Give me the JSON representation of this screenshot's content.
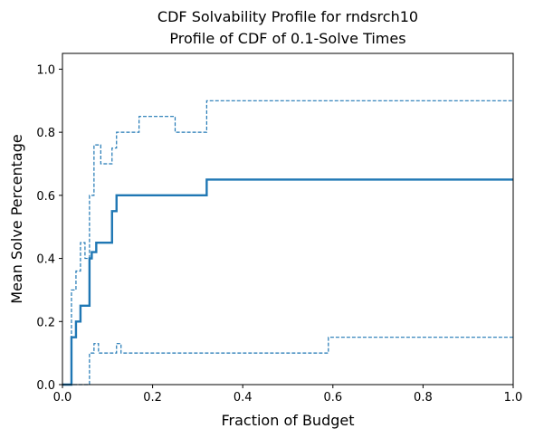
{
  "chart_data": {
    "type": "line",
    "title": "CDF Solvability Profile for rndsrch10",
    "subtitle": "Profile of CDF of 0.1-Solve Times",
    "xlabel": "Fraction of Budget",
    "ylabel": "Mean Solve Percentage",
    "xlim": [
      0,
      1
    ],
    "ylim": [
      0,
      1.05
    ],
    "xticks": [
      "0.0",
      "0.2",
      "0.4",
      "0.6",
      "0.8",
      "1.0"
    ],
    "yticks": [
      "0.0",
      "0.2",
      "0.4",
      "0.6",
      "0.8",
      "1.0"
    ],
    "grid": false,
    "color": "#1f77b4",
    "series": [
      {
        "style": "solid",
        "x": [
          0,
          0.02,
          0.02,
          0.03,
          0.03,
          0.04,
          0.04,
          0.06,
          0.06,
          0.065,
          0.065,
          0.075,
          0.075,
          0.11,
          0.11,
          0.12,
          0.12,
          0.32,
          0.32,
          1.0
        ],
        "y": [
          0,
          0,
          0.15,
          0.15,
          0.2,
          0.2,
          0.25,
          0.25,
          0.4,
          0.4,
          0.42,
          0.42,
          0.45,
          0.45,
          0.55,
          0.55,
          0.6,
          0.6,
          0.65,
          0.65
        ]
      },
      {
        "style": "dashed",
        "x": [
          0,
          0.02,
          0.02,
          0.03,
          0.03,
          0.04,
          0.04,
          0.05,
          0.05,
          0.06,
          0.06,
          0.07,
          0.07,
          0.085,
          0.085,
          0.11,
          0.11,
          0.12,
          0.12,
          0.17,
          0.17,
          0.25,
          0.25,
          0.32,
          0.32,
          1.0
        ],
        "y": [
          0,
          0,
          0.3,
          0.3,
          0.36,
          0.36,
          0.45,
          0.45,
          0.4,
          0.4,
          0.6,
          0.6,
          0.76,
          0.76,
          0.7,
          0.7,
          0.75,
          0.75,
          0.8,
          0.8,
          0.85,
          0.85,
          0.8,
          0.8,
          0.9,
          0.9
        ]
      },
      {
        "style": "dashed",
        "x": [
          0,
          0.06,
          0.06,
          0.07,
          0.07,
          0.08,
          0.08,
          0.12,
          0.12,
          0.13,
          0.13,
          0.59,
          0.59,
          1.0
        ],
        "y": [
          0,
          0,
          0.1,
          0.1,
          0.13,
          0.13,
          0.1,
          0.1,
          0.13,
          0.13,
          0.1,
          0.1,
          0.15,
          0.15
        ]
      }
    ]
  }
}
